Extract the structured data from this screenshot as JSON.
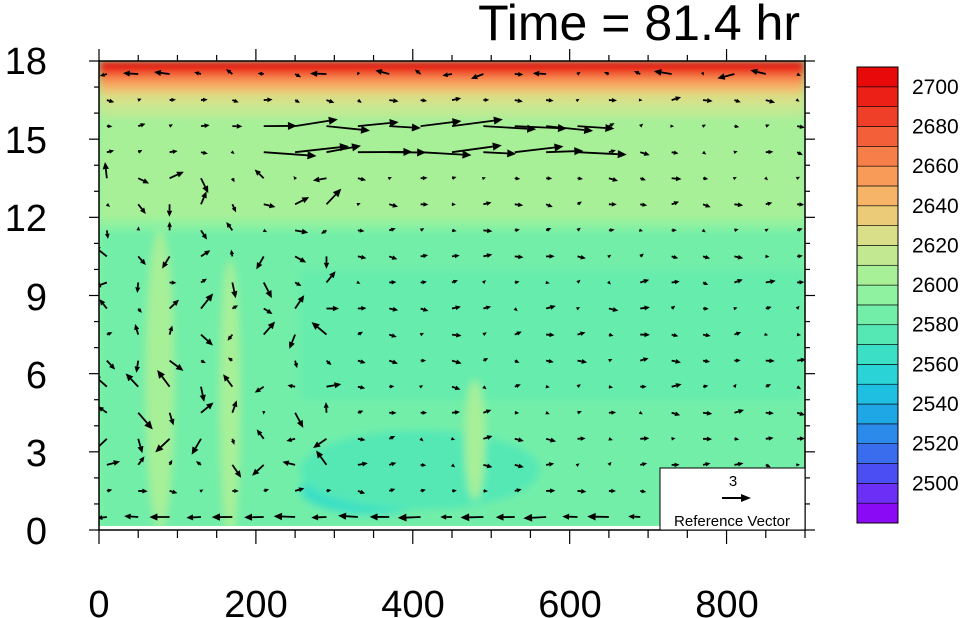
{
  "chart_data": {
    "type": "contour_vector",
    "title": "Time = 81.4 hr",
    "xlim": [
      0,
      900
    ],
    "ylim": [
      0,
      18
    ],
    "x_ticks": [
      "0",
      "200",
      "400",
      "600",
      "800"
    ],
    "x_tick_values": [
      0,
      200,
      400,
      600,
      800
    ],
    "y_ticks": [
      "0",
      "3",
      "6",
      "9",
      "12",
      "15",
      "18"
    ],
    "y_tick_values": [
      0,
      3,
      6,
      9,
      12,
      15,
      18
    ],
    "colorbar": {
      "levels": [
        2490,
        2500,
        2510,
        2520,
        2530,
        2540,
        2550,
        2560,
        2570,
        2580,
        2590,
        2600,
        2610,
        2620,
        2630,
        2640,
        2650,
        2660,
        2670,
        2680,
        2690,
        2700,
        2710
      ],
      "labels": [
        "2500",
        "2520",
        "2540",
        "2560",
        "2580",
        "2600",
        "2620",
        "2640",
        "2660",
        "2680",
        "2700"
      ],
      "colors": [
        "#8B0AF5",
        "#6C2FF5",
        "#4B4EF2",
        "#3A6CEE",
        "#2C8BEA",
        "#1FA6E5",
        "#1EBFE0",
        "#2AD3D5",
        "#3ADFC5",
        "#55E8B5",
        "#72EEA8",
        "#8EF2A0",
        "#A8F098",
        "#C2E992",
        "#D9DF88",
        "#ECCB78",
        "#F5B468",
        "#F89A58",
        "#F67E48",
        "#F35F38",
        "#EF3F28",
        "#EC2016",
        "#E80A0A"
      ]
    },
    "reference_vector": {
      "magnitude": "3",
      "label": "Reference Vector"
    }
  }
}
